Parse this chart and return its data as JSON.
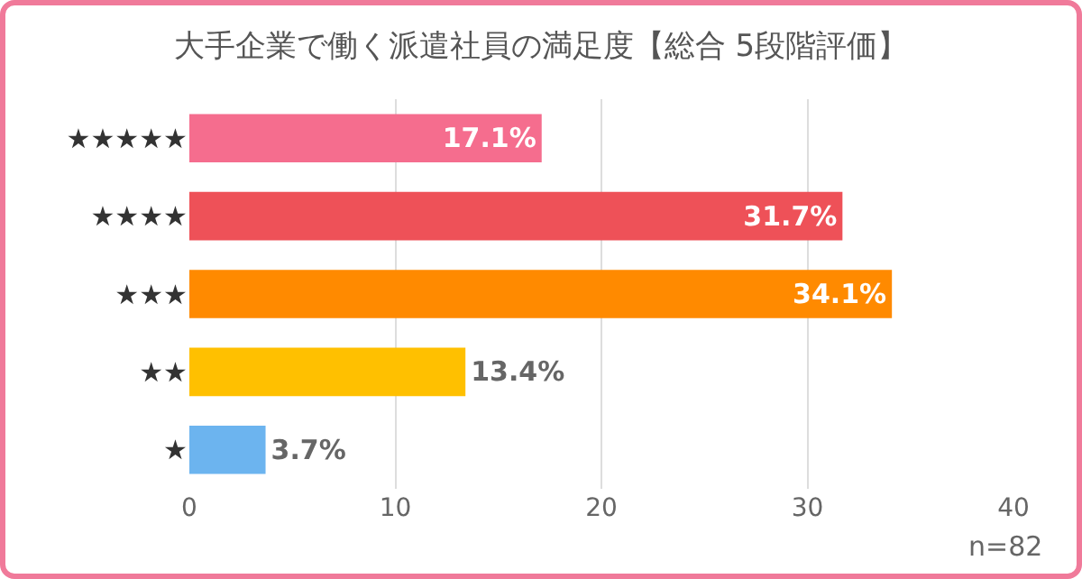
{
  "chart_data": {
    "type": "bar",
    "orientation": "horizontal",
    "title": "大手企業で働く派遣社員の満足度【総合 5段階評価】",
    "categories": [
      "★★★★★",
      "★★★★",
      "★★★",
      "★★",
      "★"
    ],
    "values": [
      17.1,
      31.7,
      34.1,
      13.4,
      3.7
    ],
    "colors": [
      "#f56d8e",
      "#ee5158",
      "#ff8a00",
      "#ffc000",
      "#6cb4ef"
    ],
    "value_labels": [
      "17.1%",
      "31.7%",
      "34.1%",
      "13.4%",
      "3.7%"
    ],
    "xlim": [
      0,
      40
    ],
    "xticks": [
      0,
      10,
      20,
      30,
      40
    ],
    "grid": "x",
    "annotations": [
      "n=82"
    ]
  }
}
